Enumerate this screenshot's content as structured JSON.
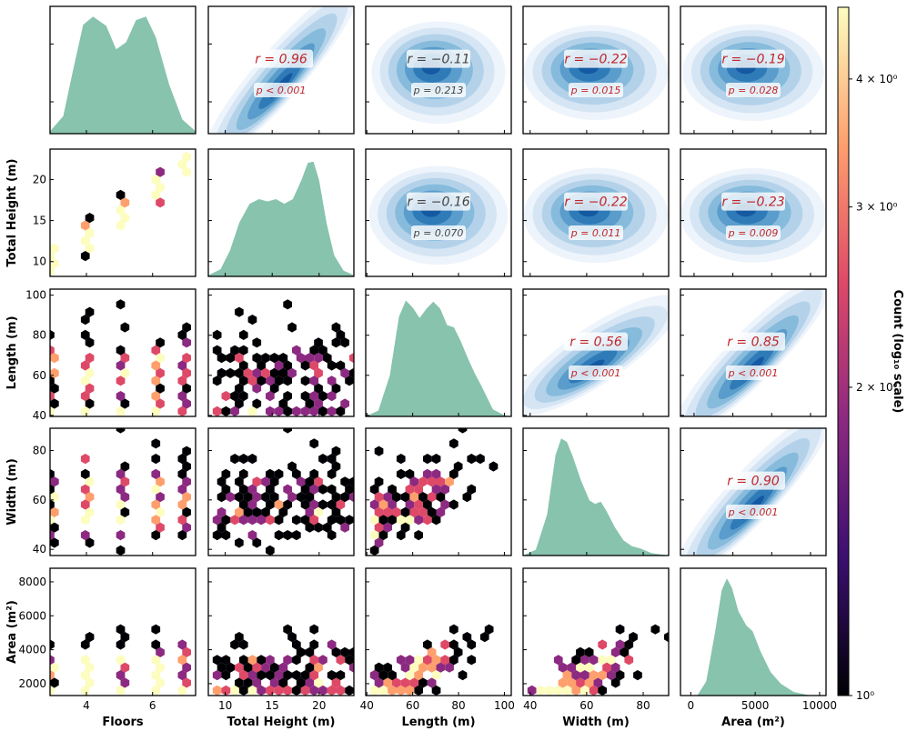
{
  "variables": [
    "Floors",
    "Total Height (m)",
    "Length (m)",
    "Width (m)",
    "Area (m²)"
  ],
  "colors": {
    "kde_fill": "#87c3ad",
    "hex_cmap": [
      "#000004",
      "#3b0f70",
      "#8c2981",
      "#de4968",
      "#fe9f6d",
      "#fcfdbf"
    ],
    "contour_cmap": [
      "#eef4fb",
      "#d5e5f4",
      "#b3d2ea",
      "#86bbdc",
      "#5a9ccb",
      "#2f7bb8",
      "#1459a1"
    ],
    "corr_red": "#c0262b",
    "corr_gray": "#444444"
  },
  "chart_data": {
    "type": "pairplot",
    "variables": [
      {
        "name": "Floors",
        "label": "Floors",
        "range": [
          2.9,
          7.3
        ],
        "ticks": [
          4,
          6
        ],
        "tick_labels": [
          "4",
          "6"
        ]
      },
      {
        "name": "Total Height",
        "label": "Total Height (m)",
        "range": [
          8.2,
          23.7
        ],
        "ticks": [
          10,
          15,
          20
        ],
        "tick_labels": [
          "10",
          "15",
          "20"
        ]
      },
      {
        "name": "Length",
        "label": "Length (m)",
        "range": [
          39.5,
          103
        ],
        "ticks": [
          40,
          60,
          80,
          100
        ],
        "tick_labels": [
          "40",
          "60",
          "80",
          "100"
        ]
      },
      {
        "name": "Width",
        "label": "Width (m)",
        "range": [
          37.5,
          89
        ],
        "ticks": [
          40,
          60,
          80
        ],
        "tick_labels": [
          "40",
          "60",
          "80"
        ]
      },
      {
        "name": "Area",
        "label": "Area (m²)",
        "range": [
          1300,
          8800
        ],
        "ticks": [
          2000,
          4000,
          6000,
          8000
        ],
        "tick_labels": [
          "2000",
          "4000",
          "6000",
          "8000"
        ]
      }
    ],
    "bottom_labels": [
      "Floors",
      "Total Height (m)",
      "Length (m)",
      "Width (m)",
      "Area (m²)"
    ],
    "area_diag_range": [
      -800,
      10500
    ],
    "area_diag_ticks": [
      0,
      5000,
      10000
    ],
    "area_diag_tick_labels": [
      "0",
      "5000",
      "10000"
    ],
    "kde_shapes": [
      [
        [
          2.9,
          0.02
        ],
        [
          3.3,
          0.15
        ],
        [
          3.6,
          0.55
        ],
        [
          3.9,
          0.93
        ],
        [
          4.2,
          1.0
        ],
        [
          4.6,
          0.92
        ],
        [
          4.9,
          0.72
        ],
        [
          5.2,
          0.78
        ],
        [
          5.5,
          0.97
        ],
        [
          5.8,
          1.0
        ],
        [
          6.1,
          0.82
        ],
        [
          6.5,
          0.42
        ],
        [
          6.9,
          0.12
        ],
        [
          7.3,
          0.02
        ]
      ],
      [
        [
          8.2,
          0.01
        ],
        [
          9.5,
          0.06
        ],
        [
          10.5,
          0.22
        ],
        [
          11.5,
          0.46
        ],
        [
          12.6,
          0.62
        ],
        [
          13.6,
          0.66
        ],
        [
          14.5,
          0.64
        ],
        [
          15.4,
          0.66
        ],
        [
          16.3,
          0.62
        ],
        [
          17.2,
          0.66
        ],
        [
          18.1,
          0.82
        ],
        [
          18.8,
          0.97
        ],
        [
          19.4,
          0.98
        ],
        [
          20.0,
          0.82
        ],
        [
          20.8,
          0.45
        ],
        [
          21.6,
          0.18
        ],
        [
          22.6,
          0.05
        ],
        [
          23.7,
          0.01
        ]
      ],
      [
        [
          39.5,
          0.0
        ],
        [
          45,
          0.05
        ],
        [
          50,
          0.35
        ],
        [
          54,
          0.85
        ],
        [
          57,
          0.99
        ],
        [
          60,
          0.93
        ],
        [
          63,
          0.84
        ],
        [
          66,
          0.92
        ],
        [
          69,
          0.98
        ],
        [
          72,
          0.92
        ],
        [
          75,
          0.78
        ],
        [
          78,
          0.76
        ],
        [
          81,
          0.64
        ],
        [
          84,
          0.5
        ],
        [
          87,
          0.37
        ],
        [
          90,
          0.26
        ],
        [
          95,
          0.06
        ],
        [
          100,
          0.01
        ],
        [
          103,
          0.0
        ]
      ],
      [
        [
          37.5,
          0.0
        ],
        [
          42,
          0.05
        ],
        [
          46,
          0.35
        ],
        [
          49,
          0.86
        ],
        [
          51,
          1.0
        ],
        [
          53,
          0.97
        ],
        [
          55,
          0.85
        ],
        [
          58,
          0.64
        ],
        [
          61,
          0.47
        ],
        [
          63,
          0.44
        ],
        [
          65,
          0.46
        ],
        [
          67,
          0.38
        ],
        [
          70,
          0.24
        ],
        [
          73,
          0.13
        ],
        [
          76,
          0.08
        ],
        [
          79,
          0.06
        ],
        [
          83,
          0.02
        ],
        [
          89,
          0.0
        ]
      ],
      [
        [
          500,
          0.0
        ],
        [
          1200,
          0.12
        ],
        [
          1900,
          0.55
        ],
        [
          2400,
          0.9
        ],
        [
          2800,
          1.0
        ],
        [
          3200,
          0.92
        ],
        [
          3700,
          0.72
        ],
        [
          4300,
          0.6
        ],
        [
          4800,
          0.55
        ],
        [
          5400,
          0.38
        ],
        [
          6200,
          0.2
        ],
        [
          7000,
          0.1
        ],
        [
          8000,
          0.03
        ],
        [
          9300,
          0.0
        ]
      ]
    ],
    "correlations": [
      {
        "row": 0,
        "col": 1,
        "r": 0.96,
        "p": "< 0.001",
        "r_text": "r = 0.96",
        "p_text": "p < 0.001",
        "significant": true
      },
      {
        "row": 0,
        "col": 2,
        "r": -0.11,
        "p": "0.213",
        "r_text": "r = −0.11",
        "p_text": "p = 0.213",
        "significant": false
      },
      {
        "row": 0,
        "col": 3,
        "r": -0.22,
        "p": "0.015",
        "r_text": "r = −0.22",
        "p_text": "p = 0.015",
        "significant": true
      },
      {
        "row": 0,
        "col": 4,
        "r": -0.19,
        "p": "0.028",
        "r_text": "r = −0.19",
        "p_text": "p = 0.028",
        "significant": true
      },
      {
        "row": 1,
        "col": 2,
        "r": -0.16,
        "p": "0.070",
        "r_text": "r = −0.16",
        "p_text": "p = 0.070",
        "significant": false
      },
      {
        "row": 1,
        "col": 3,
        "r": -0.22,
        "p": "0.011",
        "r_text": "r = −0.22",
        "p_text": "p = 0.011",
        "significant": true
      },
      {
        "row": 1,
        "col": 4,
        "r": -0.23,
        "p": "0.009",
        "r_text": "r = −0.23",
        "p_text": "p = 0.009",
        "significant": true
      },
      {
        "row": 2,
        "col": 3,
        "r": 0.56,
        "p": "< 0.001",
        "r_text": "r = 0.56",
        "p_text": "p < 0.001",
        "significant": true
      },
      {
        "row": 2,
        "col": 4,
        "r": 0.85,
        "p": "< 0.001",
        "r_text": "r = 0.85",
        "p_text": "p < 0.001",
        "significant": true
      },
      {
        "row": 3,
        "col": 4,
        "r": 0.9,
        "p": "< 0.001",
        "r_text": "r = 0.90",
        "p_text": "p < 0.001",
        "significant": true
      }
    ],
    "colorbar": {
      "label": "Count (log₁₀ scale)",
      "scale": "log",
      "range": [
        1,
        4.7
      ],
      "ticks": [
        1,
        2,
        3,
        4
      ],
      "tick_labels": [
        "10⁰",
        "2 × 10⁰",
        "3 × 10⁰",
        "4 × 10⁰"
      ]
    },
    "hexbin_points_count": "approx. 120 per panel",
    "hexbin_seed": 7
  }
}
